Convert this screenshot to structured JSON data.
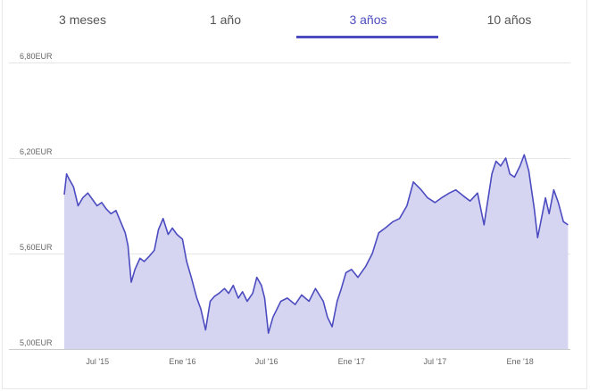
{
  "tabs": [
    {
      "label": "3 meses",
      "active": false
    },
    {
      "label": "1 año",
      "active": false
    },
    {
      "label": "3 años",
      "active": true
    },
    {
      "label": "10 años",
      "active": false
    }
  ],
  "accent_color": "#4c4cc0",
  "chart_data": {
    "type": "area",
    "y_tick_labels": [
      "6,80EUR",
      "6,20EUR",
      "5,60EUR",
      "5,00EUR"
    ],
    "y_ticks": [
      6.8,
      6.2,
      5.6,
      5.0
    ],
    "ylim": [
      5.0,
      6.8
    ],
    "x_tick_labels": [
      "Jul '15",
      "Ene '16",
      "Jul '16",
      "Ene '17",
      "Jul '17",
      "Ene '18"
    ],
    "x_ticks": [
      "2015-07-01",
      "2016-01-01",
      "2016-07-01",
      "2017-01-01",
      "2017-07-01",
      "2018-01-01"
    ],
    "xlim": [
      "2015-04-20",
      "2018-04-20"
    ],
    "line_color": "#4c4cc0",
    "fill_color": "#d5d5f2",
    "grid": true,
    "series": [
      {
        "x": [
          "2015-04-20",
          "2015-04-25",
          "2015-04-30",
          "2015-05-10",
          "2015-05-20",
          "2015-05-30",
          "2015-06-10",
          "2015-06-20",
          "2015-06-30",
          "2015-07-10",
          "2015-07-20",
          "2015-07-30",
          "2015-08-10",
          "2015-08-20",
          "2015-08-30",
          "2015-09-05",
          "2015-09-12",
          "2015-09-20",
          "2015-10-01",
          "2015-10-10",
          "2015-10-20",
          "2015-11-01",
          "2015-11-10",
          "2015-11-20",
          "2015-12-01",
          "2015-12-10",
          "2015-12-20",
          "2016-01-01",
          "2016-01-10",
          "2016-01-20",
          "2016-02-01",
          "2016-02-10",
          "2016-02-20",
          "2016-03-01",
          "2016-03-10",
          "2016-03-20",
          "2016-04-01",
          "2016-04-10",
          "2016-04-20",
          "2016-05-01",
          "2016-05-10",
          "2016-05-20",
          "2016-06-01",
          "2016-06-10",
          "2016-06-20",
          "2016-06-27",
          "2016-07-05",
          "2016-07-15",
          "2016-08-01",
          "2016-08-15",
          "2016-09-01",
          "2016-09-15",
          "2016-10-01",
          "2016-10-15",
          "2016-11-01",
          "2016-11-10",
          "2016-11-20",
          "2016-12-01",
          "2016-12-10",
          "2016-12-20",
          "2017-01-01",
          "2017-01-15",
          "2017-02-01",
          "2017-02-15",
          "2017-03-01",
          "2017-03-15",
          "2017-04-01",
          "2017-04-15",
          "2017-05-01",
          "2017-05-15",
          "2017-06-01",
          "2017-06-15",
          "2017-07-01",
          "2017-07-15",
          "2017-08-01",
          "2017-08-15",
          "2017-09-01",
          "2017-09-15",
          "2017-10-01",
          "2017-10-15",
          "2017-11-01",
          "2017-11-10",
          "2017-11-20",
          "2017-12-01",
          "2017-12-10",
          "2017-12-20",
          "2018-01-01",
          "2018-01-10",
          "2018-01-20",
          "2018-02-01",
          "2018-02-08",
          "2018-02-15",
          "2018-02-25",
          "2018-03-05",
          "2018-03-15",
          "2018-03-25",
          "2018-04-05",
          "2018-04-15"
        ],
        "y": [
          5.97,
          6.1,
          6.07,
          6.02,
          5.9,
          5.95,
          5.98,
          5.94,
          5.9,
          5.92,
          5.88,
          5.85,
          5.87,
          5.8,
          5.73,
          5.65,
          5.42,
          5.5,
          5.57,
          5.55,
          5.58,
          5.62,
          5.75,
          5.82,
          5.72,
          5.76,
          5.72,
          5.69,
          5.55,
          5.45,
          5.32,
          5.25,
          5.12,
          5.3,
          5.33,
          5.35,
          5.38,
          5.35,
          5.4,
          5.32,
          5.36,
          5.3,
          5.35,
          5.45,
          5.4,
          5.32,
          5.1,
          5.2,
          5.3,
          5.32,
          5.28,
          5.34,
          5.3,
          5.38,
          5.3,
          5.2,
          5.14,
          5.3,
          5.38,
          5.48,
          5.5,
          5.45,
          5.52,
          5.6,
          5.73,
          5.76,
          5.8,
          5.82,
          5.9,
          6.05,
          6.0,
          5.95,
          5.92,
          5.95,
          5.98,
          6.0,
          5.96,
          5.93,
          5.98,
          5.78,
          6.1,
          6.18,
          6.15,
          6.2,
          6.1,
          6.08,
          6.15,
          6.22,
          6.12,
          5.88,
          5.7,
          5.8,
          5.95,
          5.85,
          6.0,
          5.92,
          5.8,
          5.78
        ]
      }
    ]
  }
}
